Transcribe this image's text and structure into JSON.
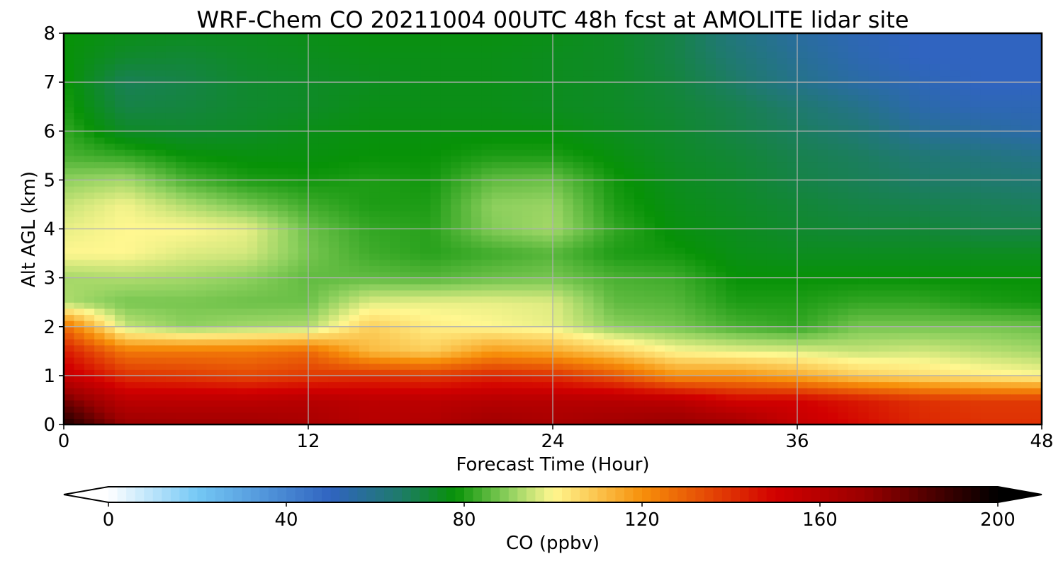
{
  "chart_data": {
    "type": "heatmap",
    "title": "WRF-Chem CO  20211004 00UTC 48h fcst at AMOLITE lidar site",
    "xlabel": "Forecast Time (Hour)",
    "ylabel": "Alt AGL (km)",
    "xlim": [
      0,
      48
    ],
    "ylim": [
      0,
      8
    ],
    "xticks": [
      0,
      12,
      24,
      36,
      48
    ],
    "yticks": [
      0,
      1,
      2,
      3,
      4,
      5,
      6,
      7,
      8
    ],
    "grid": true,
    "colorbar": {
      "label": "CO  (ppbv)",
      "min": 0,
      "max": 200,
      "ticks": [
        0,
        40,
        80,
        120,
        160,
        200
      ],
      "extend": "both",
      "orientation": "horizontal",
      "placement": "bottom",
      "colors": [
        {
          "value": 0,
          "color": "#ffffff"
        },
        {
          "value": 20,
          "color": "#74c8f5"
        },
        {
          "value": 50,
          "color": "#3064c0"
        },
        {
          "value": 65,
          "color": "#1f7a6e"
        },
        {
          "value": 78,
          "color": "#079207"
        },
        {
          "value": 90,
          "color": "#8ed05e"
        },
        {
          "value": 100,
          "color": "#fff790"
        },
        {
          "value": 120,
          "color": "#f7900a"
        },
        {
          "value": 150,
          "color": "#d20000"
        },
        {
          "value": 170,
          "color": "#9a0000"
        },
        {
          "value": 200,
          "color": "#000000"
        }
      ]
    },
    "x": [
      0,
      3,
      6,
      9,
      12,
      15,
      18,
      21,
      24,
      27,
      30,
      33,
      36,
      39,
      42,
      45,
      48
    ],
    "y": [
      0,
      0.5,
      1,
      1.5,
      2,
      2.5,
      3,
      3.5,
      4,
      4.5,
      5,
      5.5,
      6,
      6.5,
      7,
      7.5,
      8
    ],
    "z": [
      [
        195,
        170,
        168,
        168,
        165,
        160,
        162,
        168,
        165,
        168,
        172,
        168,
        155,
        148,
        142,
        140,
        140
      ],
      [
        178,
        158,
        158,
        158,
        160,
        158,
        158,
        160,
        160,
        160,
        158,
        150,
        150,
        145,
        140,
        138,
        138
      ],
      [
        155,
        140,
        138,
        135,
        138,
        140,
        138,
        142,
        140,
        132,
        120,
        120,
        115,
        108,
        105,
        102,
        100
      ],
      [
        145,
        125,
        125,
        125,
        128,
        112,
        108,
        118,
        115,
        108,
        100,
        98,
        97,
        95,
        96,
        94,
        92
      ],
      [
        128,
        95,
        90,
        92,
        93,
        108,
        102,
        100,
        98,
        90,
        88,
        84,
        82,
        88,
        88,
        88,
        87
      ],
      [
        93,
        88,
        88,
        87,
        87,
        97,
        98,
        98,
        97,
        86,
        85,
        80,
        80,
        82,
        82,
        80,
        79
      ],
      [
        92,
        93,
        92,
        90,
        86,
        86,
        85,
        87,
        88,
        84,
        83,
        78,
        78,
        78,
        78,
        78,
        78
      ],
      [
        100,
        100,
        97,
        96,
        88,
        83,
        81,
        83,
        85,
        80,
        79,
        76,
        75,
        75,
        75,
        75,
        75
      ],
      [
        98,
        100,
        100,
        98,
        87,
        82,
        81,
        89,
        92,
        82,
        77,
        75,
        73,
        72,
        72,
        70,
        70
      ],
      [
        95,
        99,
        93,
        88,
        83,
        80,
        80,
        90,
        91,
        80,
        76,
        74,
        72,
        70,
        69,
        68,
        67
      ],
      [
        90,
        92,
        84,
        80,
        79,
        80,
        79,
        86,
        87,
        79,
        75,
        73,
        70,
        68,
        66,
        65,
        64
      ],
      [
        84,
        82,
        78,
        77,
        77,
        78,
        78,
        80,
        80,
        77,
        74,
        72,
        69,
        67,
        64,
        62,
        60
      ],
      [
        82,
        74,
        73,
        74,
        76,
        77,
        77,
        77,
        77,
        75,
        73,
        70,
        67,
        64,
        58,
        56,
        54
      ],
      [
        80,
        70,
        71,
        73,
        74,
        76,
        76,
        76,
        75,
        74,
        72,
        69,
        65,
        60,
        54,
        52,
        52
      ],
      [
        79,
        68,
        70,
        73,
        74,
        75,
        76,
        76,
        75,
        74,
        71,
        66,
        60,
        55,
        52,
        50,
        50
      ],
      [
        78,
        73,
        72,
        74,
        75,
        76,
        76,
        76,
        75,
        74,
        70,
        64,
        58,
        53,
        50,
        50,
        50
      ],
      [
        78,
        76,
        75,
        75,
        76,
        77,
        77,
        77,
        76,
        74,
        70,
        62,
        56,
        52,
        50,
        50,
        50
      ]
    ]
  }
}
